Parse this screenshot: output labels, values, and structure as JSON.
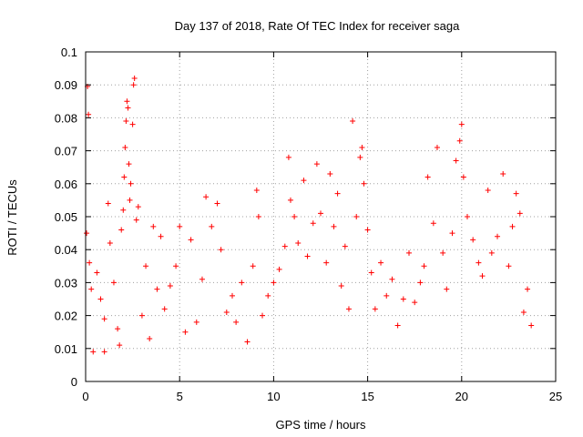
{
  "chart_data": {
    "type": "scatter",
    "title": "Day 137 of 2018, Rate Of TEC Index for receiver saga",
    "xlabel": "GPS time / hours",
    "ylabel": "ROTI / TECUs",
    "xlim": [
      0,
      25
    ],
    "ylim": [
      0,
      0.1
    ],
    "xticks": [
      0,
      5,
      10,
      15,
      20,
      25
    ],
    "xtick_labels": [
      "0",
      "5",
      "10",
      "15",
      "20",
      "25"
    ],
    "yticks": [
      0,
      0.01,
      0.02,
      0.03,
      0.04,
      0.05,
      0.06,
      0.07,
      0.08,
      0.09,
      0.1
    ],
    "ytick_labels": [
      "0",
      "0.01",
      "0.02",
      "0.03",
      "0.04",
      "0.05",
      "0.06",
      "0.07",
      "0.08",
      "0.09",
      "0.1"
    ],
    "grid": true,
    "marker": "+",
    "color": "#ff0000",
    "series": [
      {
        "name": "ROTI",
        "points": [
          [
            0.1,
            0.0895
          ],
          [
            0.15,
            0.081
          ],
          [
            0.05,
            0.045
          ],
          [
            0.2,
            0.036
          ],
          [
            0.3,
            0.028
          ],
          [
            0.4,
            0.009
          ],
          [
            0.6,
            0.033
          ],
          [
            0.8,
            0.025
          ],
          [
            1.0,
            0.019
          ],
          [
            1.0,
            0.009
          ],
          [
            1.2,
            0.054
          ],
          [
            1.3,
            0.042
          ],
          [
            1.5,
            0.03
          ],
          [
            1.7,
            0.016
          ],
          [
            1.8,
            0.011
          ],
          [
            1.9,
            0.046
          ],
          [
            2.0,
            0.052
          ],
          [
            2.05,
            0.062
          ],
          [
            2.1,
            0.071
          ],
          [
            2.15,
            0.079
          ],
          [
            2.2,
            0.085
          ],
          [
            2.25,
            0.083
          ],
          [
            2.3,
            0.066
          ],
          [
            2.35,
            0.055
          ],
          [
            2.4,
            0.06
          ],
          [
            2.5,
            0.078
          ],
          [
            2.55,
            0.09
          ],
          [
            2.6,
            0.092
          ],
          [
            2.7,
            0.049
          ],
          [
            2.8,
            0.053
          ],
          [
            3.0,
            0.02
          ],
          [
            3.2,
            0.035
          ],
          [
            3.4,
            0.013
          ],
          [
            3.6,
            0.047
          ],
          [
            3.8,
            0.028
          ],
          [
            4.0,
            0.044
          ],
          [
            4.2,
            0.022
          ],
          [
            4.5,
            0.029
          ],
          [
            4.8,
            0.035
          ],
          [
            5.0,
            0.047
          ],
          [
            5.3,
            0.015
          ],
          [
            5.6,
            0.043
          ],
          [
            5.9,
            0.018
          ],
          [
            6.2,
            0.031
          ],
          [
            6.4,
            0.056
          ],
          [
            6.7,
            0.047
          ],
          [
            7.0,
            0.054
          ],
          [
            7.2,
            0.04
          ],
          [
            7.5,
            0.021
          ],
          [
            7.8,
            0.026
          ],
          [
            8.0,
            0.018
          ],
          [
            8.3,
            0.03
          ],
          [
            8.6,
            0.012
          ],
          [
            8.9,
            0.035
          ],
          [
            9.1,
            0.058
          ],
          [
            9.2,
            0.05
          ],
          [
            9.4,
            0.02
          ],
          [
            9.7,
            0.026
          ],
          [
            10.0,
            0.03
          ],
          [
            10.3,
            0.034
          ],
          [
            10.6,
            0.041
          ],
          [
            10.8,
            0.068
          ],
          [
            10.9,
            0.055
          ],
          [
            11.1,
            0.05
          ],
          [
            11.3,
            0.042
          ],
          [
            11.6,
            0.061
          ],
          [
            11.8,
            0.038
          ],
          [
            12.1,
            0.048
          ],
          [
            12.3,
            0.066
          ],
          [
            12.5,
            0.051
          ],
          [
            12.8,
            0.036
          ],
          [
            13.0,
            0.063
          ],
          [
            13.2,
            0.047
          ],
          [
            13.4,
            0.057
          ],
          [
            13.6,
            0.029
          ],
          [
            13.8,
            0.041
          ],
          [
            14.0,
            0.022
          ],
          [
            14.2,
            0.079
          ],
          [
            14.4,
            0.05
          ],
          [
            14.6,
            0.068
          ],
          [
            14.7,
            0.071
          ],
          [
            14.8,
            0.06
          ],
          [
            15.0,
            0.046
          ],
          [
            15.2,
            0.033
          ],
          [
            15.4,
            0.022
          ],
          [
            15.7,
            0.036
          ],
          [
            16.0,
            0.026
          ],
          [
            16.3,
            0.031
          ],
          [
            16.6,
            0.017
          ],
          [
            16.9,
            0.025
          ],
          [
            17.2,
            0.039
          ],
          [
            17.5,
            0.024
          ],
          [
            17.8,
            0.03
          ],
          [
            18.0,
            0.035
          ],
          [
            18.2,
            0.062
          ],
          [
            18.5,
            0.048
          ],
          [
            18.7,
            0.071
          ],
          [
            19.0,
            0.039
          ],
          [
            19.2,
            0.028
          ],
          [
            19.5,
            0.045
          ],
          [
            19.7,
            0.067
          ],
          [
            19.9,
            0.073
          ],
          [
            20.0,
            0.078
          ],
          [
            20.1,
            0.062
          ],
          [
            20.3,
            0.05
          ],
          [
            20.6,
            0.043
          ],
          [
            20.9,
            0.036
          ],
          [
            21.1,
            0.032
          ],
          [
            21.4,
            0.058
          ],
          [
            21.6,
            0.039
          ],
          [
            21.9,
            0.044
          ],
          [
            22.2,
            0.063
          ],
          [
            22.5,
            0.035
          ],
          [
            22.7,
            0.047
          ],
          [
            22.9,
            0.057
          ],
          [
            23.1,
            0.051
          ],
          [
            23.3,
            0.021
          ],
          [
            23.5,
            0.028
          ],
          [
            23.7,
            0.017
          ]
        ]
      }
    ]
  }
}
